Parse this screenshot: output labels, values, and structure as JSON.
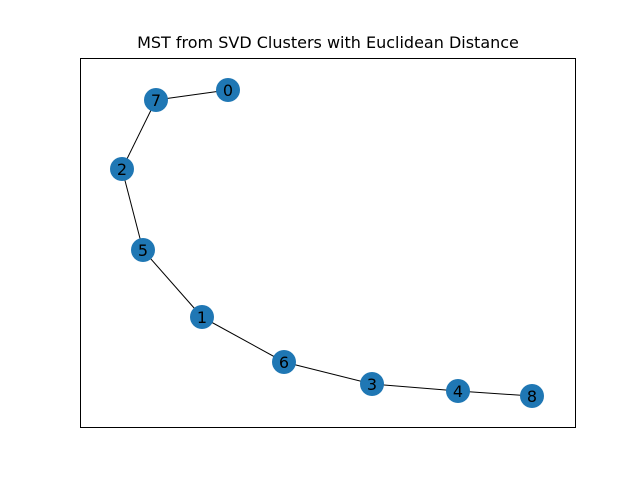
{
  "title": "MST from SVD Clusters with Euclidean Distance",
  "node_color": "#1f77b4",
  "edge_color": "#000000",
  "frame_color": "#000000",
  "nodes": [
    {
      "id": "0",
      "label": "0"
    },
    {
      "id": "1",
      "label": "1"
    },
    {
      "id": "2",
      "label": "2"
    },
    {
      "id": "3",
      "label": "3"
    },
    {
      "id": "4",
      "label": "4"
    },
    {
      "id": "5",
      "label": "5"
    },
    {
      "id": "6",
      "label": "6"
    },
    {
      "id": "7",
      "label": "7"
    },
    {
      "id": "8",
      "label": "8"
    }
  ],
  "edges": [
    [
      "0",
      "7"
    ],
    [
      "7",
      "2"
    ],
    [
      "2",
      "5"
    ],
    [
      "5",
      "1"
    ],
    [
      "1",
      "6"
    ],
    [
      "6",
      "3"
    ],
    [
      "3",
      "4"
    ],
    [
      "4",
      "8"
    ]
  ]
}
